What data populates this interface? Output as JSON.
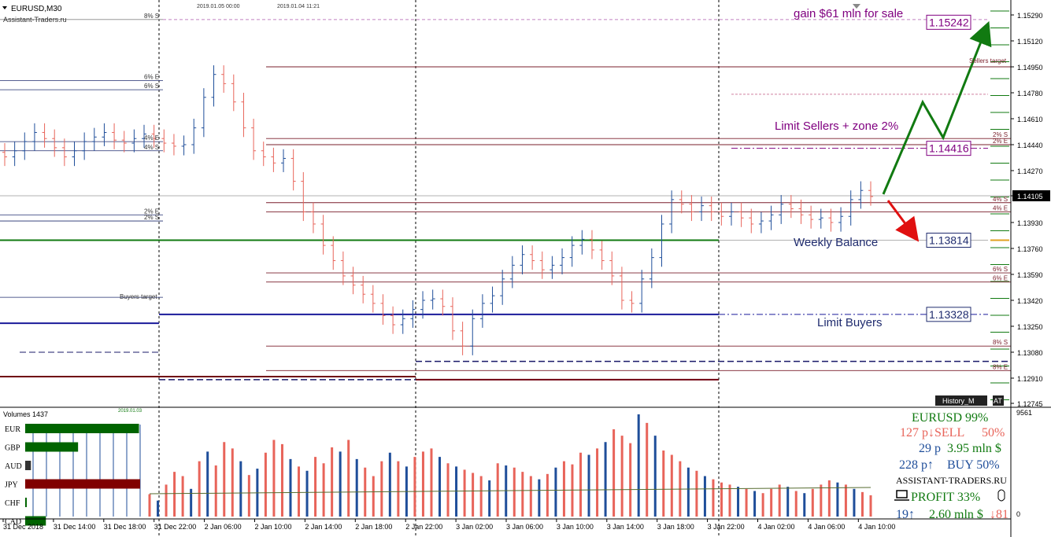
{
  "title": "EURUSD,M30",
  "watermark": "Assistant-Traders.ru",
  "vline_labels": [
    "2019.01.05 00:00",
    "2019.01.04 11:21"
  ],
  "annotations": {
    "gain": "gain $61 mln for sale",
    "limit_sellers": "Limit Sellers + zone 2%",
    "weekly_balance": "Weekly Balance",
    "limit_buyers": "Limit Buyers",
    "sellers_target": "Sellers target",
    "buyers_target": "Buyers target"
  },
  "level_labels_left": [
    {
      "text": "8% S",
      "price": 1.1526
    },
    {
      "text": "6% E",
      "price": 1.1486
    },
    {
      "text": "6% S",
      "price": 1.148
    },
    {
      "text": "4% E",
      "price": 1.1446
    },
    {
      "text": "4% S",
      "price": 1.144
    },
    {
      "text": "2% E",
      "price": 1.1398
    },
    {
      "text": "2% S",
      "price": 1.1394
    }
  ],
  "level_labels_right": [
    {
      "text": "2% S",
      "price": 1.1448
    },
    {
      "text": "2% E",
      "price": 1.1444
    },
    {
      "text": "4% S",
      "price": 1.1406
    },
    {
      "text": "4% E",
      "price": 1.14
    },
    {
      "text": "6% S",
      "price": 1.136
    },
    {
      "text": "6% E",
      "price": 1.1354
    },
    {
      "text": "8% S",
      "price": 1.1312
    },
    {
      "text": "8% E",
      "price": 1.1296
    }
  ],
  "price_boxes": [
    {
      "value": "1.15242",
      "price": 1.15242,
      "color": "#800080"
    },
    {
      "value": "1.14416",
      "price": 1.14416,
      "color": "#800080"
    },
    {
      "value": "1.13814",
      "price": 1.13814,
      "color": "#1f2b6e"
    },
    {
      "value": "1.13328",
      "price": 1.13328,
      "color": "#1f2b6e"
    }
  ],
  "current_price": "1.14105",
  "buttons": [
    "History_M",
    "AT"
  ],
  "volumes": {
    "title": "Volumes 1437",
    "scale_max": "9561",
    "scale_min": "0",
    "date_label": "2019.01.03"
  },
  "currency_bars": [
    {
      "code": "EUR",
      "value": 0.99,
      "color": "#006400"
    },
    {
      "code": "GBP",
      "value": 0.46,
      "color": "#006400"
    },
    {
      "code": "AUD",
      "value": 0.05,
      "color": "#333333"
    },
    {
      "code": "JPY",
      "value": 1.0,
      "color": "#800000"
    },
    {
      "code": "CHF",
      "value": 0.01,
      "color": "#006400"
    },
    {
      "code": "CAD",
      "value": 0.18,
      "color": "#006400"
    }
  ],
  "info_panel": {
    "line1": "EURUSD 99%",
    "line2_left": "127 p↓SELL",
    "line2_right": "50%",
    "line3_left": "29 p",
    "line3_right": "3.95 mln $",
    "line4_left": "228 p↑",
    "line4_right": "BUY 50%",
    "line5": "ASSISTANT-TRADERS.RU",
    "line6": "PROFIT 33%",
    "line7_left": "19↑",
    "line7_mid": "2.60 mln $",
    "line7_right": "↓81"
  },
  "colors": {
    "bull": "#1f4e9a",
    "bear": "#e8645a",
    "level": "#7a1f2b",
    "green": "#117a11",
    "blue": "#1a1a9a",
    "purple": "#800080"
  },
  "chart_data": {
    "type": "candlestick",
    "symbol": "EURUSD",
    "timeframe": "M30",
    "y_ticks": [
      "1.15290",
      "1.15120",
      "1.14950",
      "1.14780",
      "1.14610",
      "1.14440",
      "1.14270",
      "1.14105",
      "1.13930",
      "1.13760",
      "1.13590",
      "1.13420",
      "1.13250",
      "1.13080",
      "1.12910",
      "1.12745"
    ],
    "y_range": [
      1.12745,
      1.1537
    ],
    "x_ticks": [
      "31 Dec 2018",
      "31 Dec 14:00",
      "31 Dec 18:00",
      "31 Dec 22:00",
      "2 Jan 06:00",
      "2 Jan 10:00",
      "2 Jan 14:00",
      "2 Jan 18:00",
      "2 Jan 22:00",
      "3 Jan 02:00",
      "3 Jan 06:00",
      "3 Jan 10:00",
      "3 Jan 14:00",
      "3 Jan 18:00",
      "3 Jan 22:00",
      "4 Jan 02:00",
      "4 Jan 06:00",
      "4 Jan 10:00"
    ],
    "close_path": [
      1.1436,
      1.144,
      1.1446,
      1.1452,
      1.1448,
      1.1442,
      1.1436,
      1.144,
      1.1446,
      1.1449,
      1.1452,
      1.1447,
      1.1445,
      1.1448,
      1.1451,
      1.1448,
      1.1445,
      1.1443,
      1.1444,
      1.1455,
      1.1475,
      1.149,
      1.1484,
      1.1472,
      1.1455,
      1.144,
      1.1436,
      1.1432,
      1.1435,
      1.142,
      1.14,
      1.1392,
      1.1378,
      1.1368,
      1.1358,
      1.1352,
      1.1346,
      1.134,
      1.1332,
      1.1326,
      1.133,
      1.1336,
      1.1342,
      1.1343,
      1.1338,
      1.1322,
      1.1312,
      1.133,
      1.134,
      1.1345,
      1.1356,
      1.1365,
      1.1372,
      1.1368,
      1.1362,
      1.1365,
      1.137,
      1.1378,
      1.1382,
      1.1375,
      1.1368,
      1.1358,
      1.1342,
      1.134,
      1.1356,
      1.137,
      1.1392,
      1.1408,
      1.1405,
      1.14,
      1.1404,
      1.14,
      1.1397,
      1.14,
      1.1396,
      1.1392,
      1.1394,
      1.1398,
      1.1405,
      1.1402,
      1.1398,
      1.1395,
      1.1396,
      1.1393,
      1.1397,
      1.1408,
      1.1414,
      1.141
    ],
    "volumes": [
      210,
      150,
      300,
      420,
      380,
      260,
      520,
      610,
      480,
      700,
      640,
      520,
      390,
      450,
      600,
      720,
      680,
      540,
      470,
      430,
      560,
      500,
      650,
      610,
      720,
      540,
      460,
      380,
      520,
      600,
      520,
      470,
      560,
      610,
      640,
      560,
      500,
      470,
      440,
      410,
      380,
      340,
      500,
      480,
      460,
      420,
      380,
      350,
      400,
      460,
      520,
      490,
      600,
      580,
      640,
      700,
      820,
      760,
      690,
      960,
      880,
      760,
      620,
      580,
      520,
      460,
      430,
      380,
      350,
      320,
      300,
      280,
      260,
      240,
      220,
      260,
      300,
      280,
      240,
      220,
      260,
      300,
      340,
      320,
      300,
      260,
      230,
      200
    ],
    "levels_solid": [
      1.1495,
      1.1448,
      1.1444,
      1.1406,
      1.14,
      1.136,
      1.1354,
      1.1312,
      1.1296
    ],
    "weekly_balance": 1.13814,
    "limit_buyers": 1.13328
  }
}
